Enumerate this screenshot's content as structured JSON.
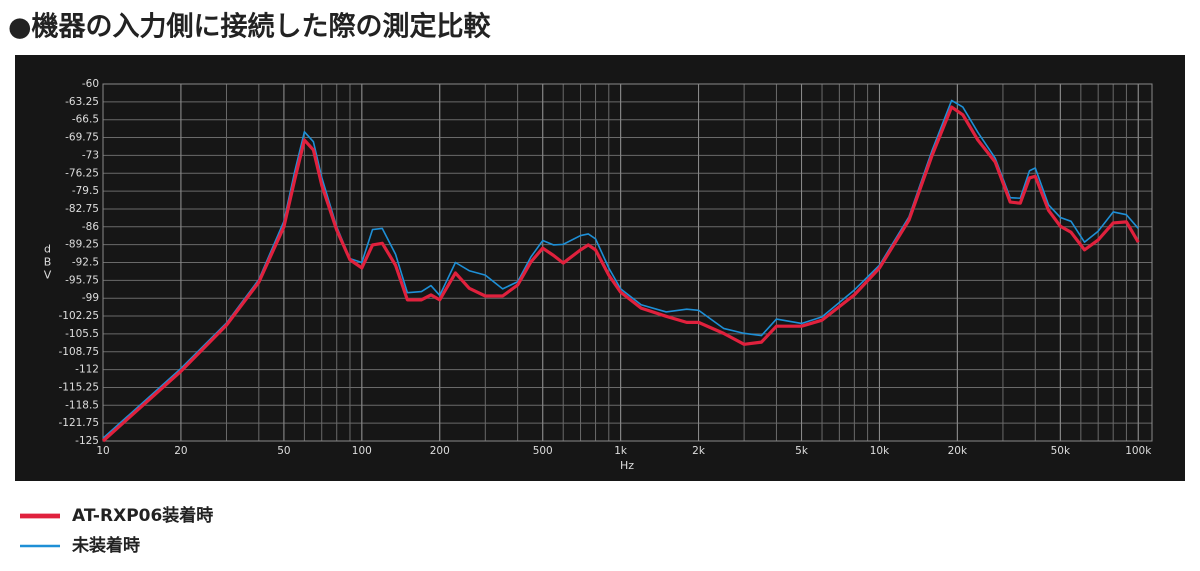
{
  "chart_data": {
    "type": "line",
    "title": "●機器の入力側に接続した際の測定比較",
    "xlabel": "Hz",
    "ylabel": "dBV",
    "xscale": "log",
    "grid": true,
    "xlim": [
      10,
      113000
    ],
    "ylim": [
      -125,
      -60
    ],
    "xticks": [
      10,
      20,
      50,
      100,
      200,
      500,
      {
        "value": 1000,
        "label": "1k"
      },
      {
        "value": 2000,
        "label": "2k"
      },
      {
        "value": 5000,
        "label": "5k"
      },
      {
        "value": 10000,
        "label": "10k"
      },
      {
        "value": 20000,
        "label": "20k"
      },
      {
        "value": 50000,
        "label": "50k"
      },
      {
        "value": 100000,
        "label": "100k"
      }
    ],
    "yticks": [
      -60,
      -63.25,
      -66.5,
      -69.75,
      -73,
      -76.25,
      -79.5,
      -82.75,
      -86,
      -89.25,
      -92.5,
      -95.75,
      -99,
      -102.25,
      -105.5,
      -108.75,
      -112,
      -115.25,
      -118.5,
      -121.75,
      -125
    ],
    "x": [
      10,
      20,
      30,
      40,
      50,
      55,
      60,
      65,
      70,
      80,
      90,
      100,
      110,
      120,
      135,
      150,
      170,
      185,
      200,
      230,
      260,
      300,
      350,
      400,
      450,
      500,
      550,
      600,
      700,
      750,
      800,
      900,
      1000,
      1200,
      1500,
      1800,
      2000,
      2500,
      3000,
      3500,
      4000,
      5000,
      6000,
      8000,
      10000,
      13000,
      16000,
      19000,
      21000,
      24000,
      28000,
      32000,
      35000,
      38000,
      40000,
      45000,
      50000,
      55000,
      62000,
      70000,
      80000,
      90000,
      100000
    ],
    "series": [
      {
        "name": "未装着時",
        "color": "#1e8fd6",
        "width": 1.6,
        "values": [
          -124.5,
          -111.8,
          -103.5,
          -95.6,
          -85,
          -76,
          -68.7,
          -70.5,
          -77,
          -86,
          -91.8,
          -92.5,
          -86.5,
          -86.3,
          -91,
          -98,
          -97.8,
          -96.7,
          -98.5,
          -92.5,
          -94,
          -94.8,
          -97.3,
          -96,
          -91.5,
          -88.5,
          -89.3,
          -89.2,
          -87.6,
          -87.3,
          -88.2,
          -93.5,
          -97.3,
          -100.2,
          -101.5,
          -101,
          -101.2,
          -104.5,
          -105.4,
          -105.8,
          -102.8,
          -103.6,
          -102.4,
          -97.5,
          -93,
          -84.2,
          -72,
          -63,
          -64.2,
          -68.8,
          -73.5,
          -80.7,
          -80.8,
          -75.8,
          -75.3,
          -82,
          -84.3,
          -85,
          -88.8,
          -86.8,
          -83.3,
          -83.8,
          -86.3
        ]
      },
      {
        "name": "AT-RXP06装着時",
        "color": "#e0213d",
        "width": 3.2,
        "values": [
          -125,
          -112.3,
          -103.9,
          -96.1,
          -86,
          -77.5,
          -70.2,
          -72,
          -78.4,
          -86.6,
          -92,
          -93.5,
          -89.3,
          -89,
          -93,
          -99.3,
          -99.3,
          -98.4,
          -99.3,
          -94.4,
          -97.2,
          -98.6,
          -98.6,
          -96.6,
          -92.4,
          -89.9,
          -91.2,
          -92.6,
          -90.2,
          -89.3,
          -90.2,
          -94.8,
          -97.9,
          -100.8,
          -102.3,
          -103.4,
          -103.4,
          -105.4,
          -107.4,
          -107,
          -104.1,
          -104.1,
          -103,
          -98.4,
          -93.5,
          -84.8,
          -72.9,
          -64.2,
          -65.6,
          -70.2,
          -74.2,
          -81.5,
          -81.7,
          -77.1,
          -76.8,
          -83,
          -85.9,
          -87,
          -90.2,
          -88.4,
          -85.3,
          -85.1,
          -88.8
        ]
      }
    ]
  }
}
